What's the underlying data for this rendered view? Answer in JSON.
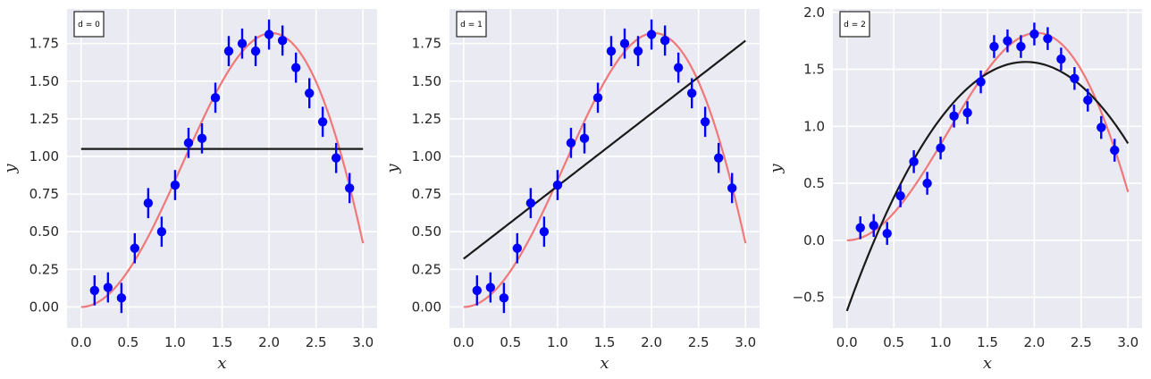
{
  "chart_data": [
    {
      "type": "scatter",
      "annotation": "d = 0",
      "xlabel": "x",
      "ylabel": "y",
      "xlim": [
        -0.15,
        3.15
      ],
      "ylim": [
        -0.14,
        1.98
      ],
      "xticks": [
        0.0,
        0.5,
        1.0,
        1.5,
        2.0,
        2.5,
        3.0
      ],
      "xtick_labels": [
        "0.0",
        "0.5",
        "1.0",
        "1.5",
        "2.0",
        "2.5",
        "3.0"
      ],
      "yticks": [
        0.0,
        0.25,
        0.5,
        0.75,
        1.0,
        1.25,
        1.5,
        1.75
      ],
      "ytick_labels": [
        "0.00",
        "0.25",
        "0.50",
        "0.75",
        "1.00",
        "1.25",
        "1.50",
        "1.75"
      ],
      "grid": true,
      "fit_coefficients": [
        1.05
      ]
    },
    {
      "type": "scatter",
      "annotation": "d = 1",
      "xlabel": "x",
      "ylabel": "y",
      "xlim": [
        -0.15,
        3.15
      ],
      "ylim": [
        -0.14,
        1.98
      ],
      "xticks": [
        0.0,
        0.5,
        1.0,
        1.5,
        2.0,
        2.5,
        3.0
      ],
      "xtick_labels": [
        "0.0",
        "0.5",
        "1.0",
        "1.5",
        "2.0",
        "2.5",
        "3.0"
      ],
      "yticks": [
        0.0,
        0.25,
        0.5,
        0.75,
        1.0,
        1.25,
        1.5,
        1.75
      ],
      "ytick_labels": [
        "0.00",
        "0.25",
        "0.50",
        "0.75",
        "1.00",
        "1.25",
        "1.50",
        "1.75"
      ],
      "grid": true,
      "fit_coefficients": [
        0.32,
        0.483
      ]
    },
    {
      "type": "scatter",
      "annotation": "d = 2",
      "xlabel": "x",
      "ylabel": "y",
      "xlim": [
        -0.15,
        3.15
      ],
      "ylim": [
        -0.77,
        2.03
      ],
      "xticks": [
        0.0,
        0.5,
        1.0,
        1.5,
        2.0,
        2.5,
        3.0
      ],
      "xtick_labels": [
        "0.0",
        "0.5",
        "1.0",
        "1.5",
        "2.0",
        "2.5",
        "3.0"
      ],
      "yticks": [
        -0.5,
        0.0,
        0.5,
        1.0,
        1.5,
        2.0
      ],
      "ytick_labels": [
        "−0.5",
        "0.0",
        "0.5",
        "1.0",
        "1.5",
        "2.0"
      ],
      "grid": true,
      "fit_coefficients": [
        -0.62,
        2.29,
        -0.6
      ]
    }
  ],
  "shared": {
    "points_x": [
      0.143,
      0.286,
      0.429,
      0.571,
      0.714,
      0.857,
      1.0,
      1.143,
      1.286,
      1.429,
      1.571,
      1.714,
      1.857,
      2.0,
      2.143,
      2.286,
      2.429,
      2.571,
      2.714,
      2.857
    ],
    "points_y": [
      0.11,
      0.13,
      0.06,
      0.39,
      0.69,
      0.5,
      0.81,
      1.09,
      1.12,
      1.39,
      1.7,
      1.75,
      1.7,
      1.81,
      1.77,
      1.59,
      1.42,
      1.23,
      0.99,
      0.79
    ],
    "error": 0.1,
    "true_curve": "x*sin(x)",
    "curve_range": [
      0,
      3
    ],
    "colors": {
      "background": "#eaeaf2",
      "grid": "#ffffff",
      "points": "#0000ff",
      "true_curve": "#f07878",
      "fit_line": "#1a1a1a",
      "text": "#262626"
    }
  }
}
